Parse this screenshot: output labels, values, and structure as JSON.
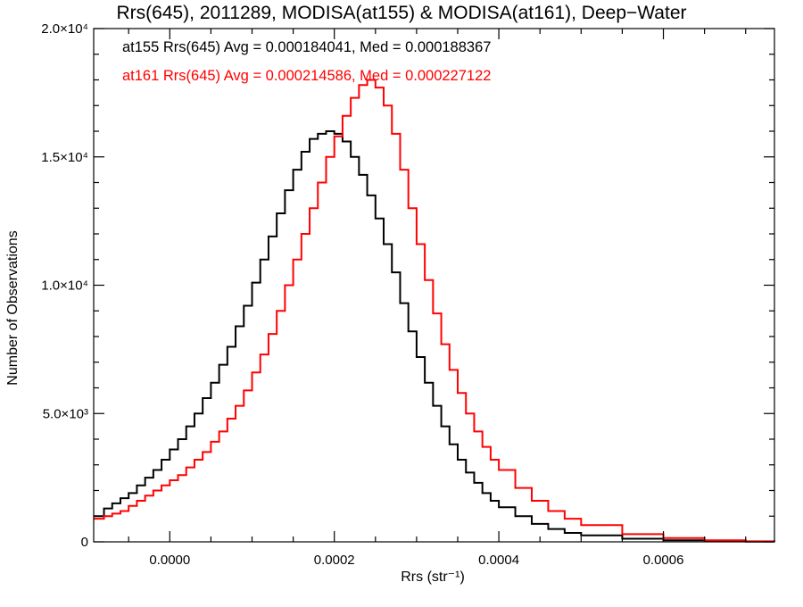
{
  "chart_data": {
    "type": "line",
    "title": "Rrs(645), 2011289, MODISA(at155) & MODISA(at161), Deep−Water",
    "xlabel": "Rrs (str⁻¹)",
    "ylabel": "Number of Observations",
    "xlim": [
      -9.25e-05,
      0.000735
    ],
    "ylim": [
      0,
      20000
    ],
    "x_ticks": [
      {
        "value": 0.0,
        "label": "0.0000"
      },
      {
        "value": 0.0002,
        "label": "0.0002"
      },
      {
        "value": 0.0004,
        "label": "0.0004"
      },
      {
        "value": 0.0006,
        "label": "0.0006"
      }
    ],
    "y_ticks": [
      {
        "value": 0,
        "label": "0"
      },
      {
        "value": 5000,
        "label": "5.0×10³"
      },
      {
        "value": 10000,
        "label": "1.0×10⁴"
      },
      {
        "value": 15000,
        "label": "1.5×10⁴"
      },
      {
        "value": 20000,
        "label": "2.0×10⁴"
      }
    ],
    "annotations": [
      {
        "text": "at155 Rrs(645) Avg = 0.000184041, Med = 0.000188367",
        "color": "#000000"
      },
      {
        "text": "at161 Rrs(645) Avg = 0.000214586, Med = 0.000227122",
        "color": "#ff0000"
      }
    ],
    "series": [
      {
        "color": "#000000",
        "x": [
          -9e-05,
          -8e-05,
          -7e-05,
          -6e-05,
          -5e-05,
          -4e-05,
          -3e-05,
          -2e-05,
          -1e-05,
          0.0,
          1e-05,
          2e-05,
          3e-05,
          4e-05,
          5e-05,
          6e-05,
          7e-05,
          8e-05,
          9e-05,
          0.0001,
          0.00011,
          0.00012,
          0.00013,
          0.00014,
          0.00015,
          0.00016,
          0.00017,
          0.00018,
          0.00019,
          0.0002,
          0.00021,
          0.00022,
          0.00023,
          0.00024,
          0.00025,
          0.00026,
          0.00027,
          0.00028,
          0.00029,
          0.0003,
          0.00031,
          0.00032,
          0.00033,
          0.00034,
          0.00035,
          0.00036,
          0.00037,
          0.00038,
          0.00039,
          0.0004,
          0.00042,
          0.00044,
          0.00046,
          0.00048,
          0.0005,
          0.00055,
          0.0006,
          0.00065,
          0.0007,
          0.000735
        ],
        "y": [
          1000,
          1300,
          1500,
          1700,
          1900,
          2200,
          2500,
          2800,
          3200,
          3600,
          4000,
          4500,
          5000,
          5600,
          6200,
          6900,
          7600,
          8400,
          9200,
          10100,
          11000,
          11900,
          12800,
          13700,
          14500,
          15200,
          15700,
          15900,
          16000,
          15900,
          15600,
          15000,
          14300,
          13500,
          12600,
          11600,
          10500,
          9300,
          8200,
          7200,
          6200,
          5300,
          4500,
          3800,
          3200,
          2700,
          2300,
          1900,
          1600,
          1350,
          1000,
          700,
          500,
          350,
          250,
          120,
          60,
          30,
          10,
          0
        ]
      },
      {
        "color": "#ff0000",
        "x": [
          -9e-05,
          -8e-05,
          -7e-05,
          -6e-05,
          -5e-05,
          -4e-05,
          -3e-05,
          -2e-05,
          -1e-05,
          0.0,
          1e-05,
          2e-05,
          3e-05,
          4e-05,
          5e-05,
          6e-05,
          7e-05,
          8e-05,
          9e-05,
          0.0001,
          0.00011,
          0.00012,
          0.00013,
          0.00014,
          0.00015,
          0.00016,
          0.00017,
          0.00018,
          0.00019,
          0.0002,
          0.00021,
          0.00022,
          0.00023,
          0.00024,
          0.00025,
          0.00026,
          0.00027,
          0.00028,
          0.00029,
          0.0003,
          0.00031,
          0.00032,
          0.00033,
          0.00034,
          0.00035,
          0.00036,
          0.00037,
          0.00038,
          0.00039,
          0.0004,
          0.00042,
          0.00044,
          0.00046,
          0.00048,
          0.0005,
          0.00055,
          0.0006,
          0.00065,
          0.0007,
          0.000735
        ],
        "y": [
          900,
          1000,
          1100,
          1200,
          1400,
          1600,
          1800,
          2000,
          2200,
          2400,
          2600,
          2900,
          3200,
          3500,
          3900,
          4300,
          4800,
          5300,
          5900,
          6600,
          7300,
          8100,
          9000,
          10000,
          11000,
          12000,
          13000,
          14000,
          15000,
          15800,
          16600,
          17300,
          17800,
          18000,
          17700,
          17000,
          15900,
          14500,
          13000,
          11600,
          10200,
          8900,
          7700,
          6700,
          5800,
          5000,
          4300,
          3700,
          3200,
          2800,
          2100,
          1600,
          1200,
          900,
          650,
          300,
          150,
          60,
          20,
          0
        ]
      }
    ]
  }
}
